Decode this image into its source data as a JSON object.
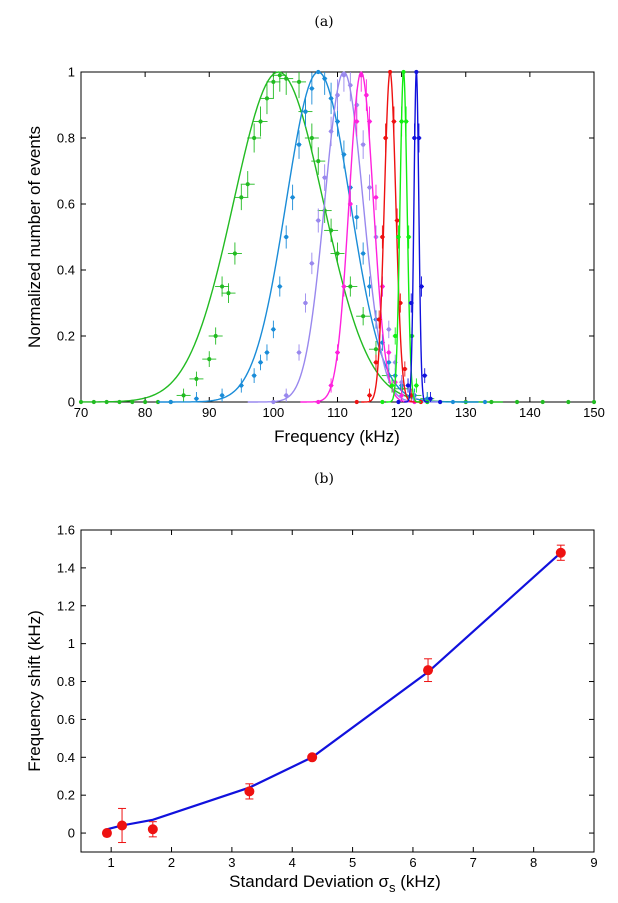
{
  "chart_data": [
    {
      "type": "line",
      "panel_label": "(a)",
      "xlabel": "Frequency (kHz)",
      "ylabel": "Normalized number of events",
      "xlim": [
        70,
        150
      ],
      "ylim": [
        0,
        1
      ],
      "xticks": [
        70,
        80,
        90,
        100,
        110,
        120,
        130,
        140,
        150
      ],
      "yticks": [
        0,
        0.2,
        0.4,
        0.6,
        0.8,
        1
      ],
      "ytick_labels": [
        "0",
        "0.2",
        "0.4",
        "0.6",
        "0.8",
        "1"
      ],
      "grid": false,
      "series": [
        {
          "color": "#22bb22",
          "center": 100.8,
          "sigma": 7.0,
          "points": [
            [
              70,
              0
            ],
            [
              72,
              0
            ],
            [
              74,
              0
            ],
            [
              76,
              0
            ],
            [
              78,
              0
            ],
            [
              80,
              0
            ],
            [
              82,
              0
            ],
            [
              84,
              0
            ],
            [
              86,
              0.02
            ],
            [
              88,
              0.07
            ],
            [
              90,
              0.13
            ],
            [
              91,
              0.2
            ],
            [
              92,
              0.35
            ],
            [
              93,
              0.33
            ],
            [
              94,
              0.45
            ],
            [
              95,
              0.62
            ],
            [
              96,
              0.66
            ],
            [
              97,
              0.8
            ],
            [
              98,
              0.85
            ],
            [
              99,
              0.92
            ],
            [
              100,
              0.97
            ],
            [
              101,
              0.99
            ],
            [
              102,
              0.98
            ],
            [
              104,
              0.97
            ],
            [
              105,
              0.88
            ],
            [
              106,
              0.8
            ],
            [
              107,
              0.73
            ],
            [
              108,
              0.58
            ],
            [
              109,
              0.52
            ],
            [
              110,
              0.45
            ],
            [
              112,
              0.35
            ],
            [
              114,
              0.26
            ],
            [
              116,
              0.16
            ],
            [
              118,
              0.08
            ],
            [
              120,
              0.04
            ],
            [
              122,
              0.02
            ],
            [
              124,
              0.01
            ],
            [
              126,
              0
            ],
            [
              130,
              0
            ],
            [
              134,
              0
            ],
            [
              138,
              0
            ],
            [
              142,
              0
            ],
            [
              146,
              0
            ],
            [
              150,
              0
            ]
          ]
        },
        {
          "color": "#1a8cd8",
          "center": 107.0,
          "sigma": 5.0,
          "points": [
            [
              84,
              0
            ],
            [
              88,
              0.01
            ],
            [
              92,
              0.02
            ],
            [
              95,
              0.05
            ],
            [
              97,
              0.08
            ],
            [
              98,
              0.12
            ],
            [
              99,
              0.15
            ],
            [
              100,
              0.22
            ],
            [
              101,
              0.35
            ],
            [
              102,
              0.5
            ],
            [
              103,
              0.62
            ],
            [
              104,
              0.78
            ],
            [
              105,
              0.88
            ],
            [
              106,
              0.95
            ],
            [
              107,
              1.0
            ],
            [
              108,
              0.98
            ],
            [
              109,
              0.92
            ],
            [
              110,
              0.85
            ],
            [
              111,
              0.75
            ],
            [
              112,
              0.65
            ],
            [
              113,
              0.56
            ],
            [
              114,
              0.45
            ],
            [
              115,
              0.35
            ],
            [
              116,
              0.25
            ],
            [
              117,
              0.18
            ],
            [
              118,
              0.12
            ],
            [
              119,
              0.08
            ],
            [
              120,
              0.05
            ],
            [
              122,
              0.02
            ],
            [
              124,
              0.01
            ],
            [
              128,
              0
            ],
            [
              133,
              0
            ]
          ]
        },
        {
          "color": "#9988ee",
          "center": 111.0,
          "sigma": 3.0,
          "points": [
            [
              100,
              0
            ],
            [
              102,
              0.02
            ],
            [
              104,
              0.15
            ],
            [
              105,
              0.3
            ],
            [
              106,
              0.42
            ],
            [
              107,
              0.55
            ],
            [
              108,
              0.68
            ],
            [
              109,
              0.82
            ],
            [
              110,
              0.93
            ],
            [
              111,
              0.99
            ],
            [
              112,
              0.96
            ],
            [
              113,
              0.9
            ],
            [
              114,
              0.78
            ],
            [
              115,
              0.65
            ],
            [
              116,
              0.5
            ],
            [
              117,
              0.35
            ],
            [
              118,
              0.22
            ],
            [
              119,
              0.12
            ],
            [
              120,
              0.06
            ],
            [
              122,
              0.01
            ],
            [
              124,
              0
            ]
          ]
        },
        {
          "color": "#ff22dd",
          "center": 113.7,
          "sigma": 1.9,
          "points": [
            [
              107,
              0
            ],
            [
              109,
              0.05
            ],
            [
              110,
              0.15
            ],
            [
              111,
              0.35
            ],
            [
              112,
              0.6
            ],
            [
              113,
              0.85
            ],
            [
              113.7,
              0.99
            ],
            [
              114.5,
              0.93
            ],
            [
              115,
              0.85
            ],
            [
              116,
              0.62
            ],
            [
              117,
              0.35
            ],
            [
              118,
              0.15
            ],
            [
              119,
              0.06
            ],
            [
              120,
              0.02
            ],
            [
              122,
              0
            ]
          ]
        },
        {
          "color": "#ee1111",
          "center": 118.2,
          "sigma": 0.9,
          "points": [
            [
              113,
              0
            ],
            [
              115,
              0.02
            ],
            [
              116,
              0.12
            ],
            [
              116.5,
              0.25
            ],
            [
              117,
              0.5
            ],
            [
              117.5,
              0.8
            ],
            [
              118.2,
              1.0
            ],
            [
              118.8,
              0.85
            ],
            [
              119.3,
              0.55
            ],
            [
              119.8,
              0.3
            ],
            [
              120.5,
              0.1
            ],
            [
              121.5,
              0.02
            ],
            [
              123,
              0
            ]
          ]
        },
        {
          "color": "#11ee11",
          "center": 120.3,
          "sigma": 0.55,
          "points": [
            [
              117,
              0
            ],
            [
              118.5,
              0.05
            ],
            [
              119,
              0.2
            ],
            [
              119.5,
              0.5
            ],
            [
              120,
              0.85
            ],
            [
              120.3,
              1.0
            ],
            [
              120.7,
              0.85
            ],
            [
              121.1,
              0.5
            ],
            [
              121.6,
              0.2
            ],
            [
              122.3,
              0.05
            ],
            [
              124,
              0
            ]
          ]
        },
        {
          "color": "#1111dd",
          "center": 122.3,
          "sigma": 0.38,
          "points": [
            [
              119.5,
              0
            ],
            [
              121,
              0.05
            ],
            [
              121.5,
              0.3
            ],
            [
              122,
              0.8
            ],
            [
              122.3,
              1.0
            ],
            [
              122.7,
              0.8
            ],
            [
              123.1,
              0.35
            ],
            [
              123.6,
              0.08
            ],
            [
              124.5,
              0.01
            ],
            [
              126,
              0
            ]
          ]
        }
      ]
    },
    {
      "type": "scatter",
      "panel_label": "(b)",
      "xlabel": "Standard Deviation σ",
      "xlabel_sub": "s",
      "xlabel_unit": " (kHz)",
      "ylabel": "Frequency shift (kHz)",
      "xlim": [
        0.5,
        9
      ],
      "ylim": [
        -0.1,
        1.6
      ],
      "xticks": [
        1,
        2,
        3,
        4,
        5,
        6,
        7,
        8,
        9
      ],
      "yticks": [
        0,
        0.2,
        0.4,
        0.6,
        0.8,
        1.0,
        1.2,
        1.4,
        1.6
      ],
      "ytick_labels": [
        "0",
        "0.2",
        "0.4",
        "0.6",
        "0.8",
        "1",
        "1.2",
        "1.4",
        "1.6"
      ],
      "grid": false,
      "points": {
        "color": "#ee1111",
        "x": [
          0.93,
          1.18,
          1.69,
          3.29,
          4.33,
          6.25,
          8.45
        ],
        "y": [
          0.0,
          0.04,
          0.02,
          0.22,
          0.4,
          0.86,
          1.48
        ],
        "err": [
          0.01,
          0.09,
          0.04,
          0.04,
          0.01,
          0.06,
          0.04
        ]
      },
      "fit_line": {
        "color": "#1111dd",
        "x": [
          0.93,
          1.18,
          1.69,
          3.29,
          4.33,
          6.25,
          8.45
        ],
        "y": [
          0.02,
          0.04,
          0.07,
          0.24,
          0.4,
          0.85,
          1.48
        ]
      }
    }
  ]
}
